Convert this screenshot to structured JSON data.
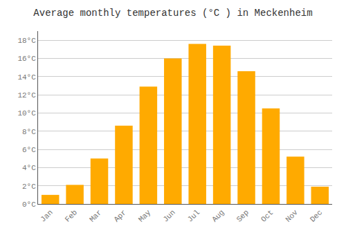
{
  "chart_data": {
    "type": "bar",
    "title": "Average monthly temperatures (°C ) in Meckenheim",
    "categories": [
      "Jan",
      "Feb",
      "Mar",
      "Apr",
      "May",
      "Jun",
      "Jul",
      "Aug",
      "Sep",
      "Oct",
      "Nov",
      "Dec"
    ],
    "values": [
      1.0,
      2.1,
      5.0,
      8.6,
      12.9,
      16.0,
      17.6,
      17.4,
      14.6,
      10.5,
      5.2,
      1.9
    ],
    "color": "#FFAA00",
    "ylim": [
      0,
      19
    ],
    "yticks": [
      {
        "value": 0,
        "label": "0°C"
      },
      {
        "value": 2,
        "label": "2°C"
      },
      {
        "value": 4,
        "label": "4°C"
      },
      {
        "value": 6,
        "label": "6°C"
      },
      {
        "value": 8,
        "label": "8°C"
      },
      {
        "value": 10,
        "label": "10°C"
      },
      {
        "value": 12,
        "label": "12°C"
      },
      {
        "value": 14,
        "label": "14°C"
      },
      {
        "value": 16,
        "label": "16°C"
      },
      {
        "value": 18,
        "label": "18°C"
      }
    ],
    "grid": true
  }
}
